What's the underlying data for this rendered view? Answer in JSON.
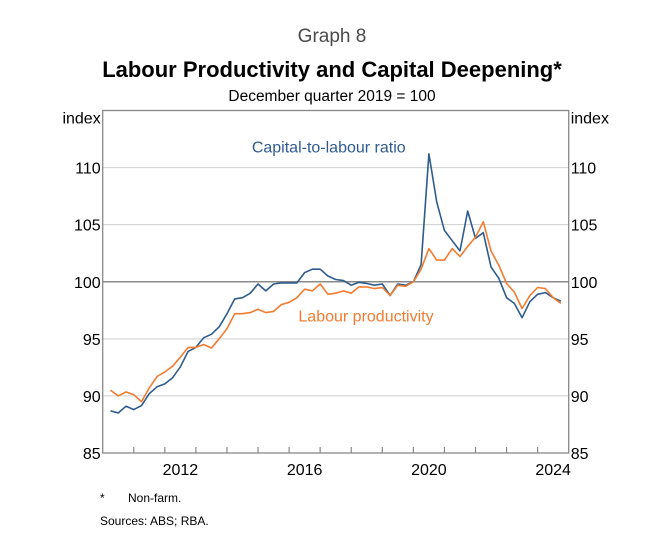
{
  "header": {
    "graph_number": "Graph 8",
    "title": "Labour Productivity and Capital Deepening*",
    "subtitle": "December quarter 2019 = 100"
  },
  "footnotes": {
    "star_symbol": "*",
    "note": "Non-farm.",
    "sources": "Sources: ABS; RBA."
  },
  "chart_data": {
    "type": "line",
    "title": "Labour Productivity and Capital Deepening*",
    "subtitle": "December quarter 2019 = 100",
    "xlabel": "",
    "ylabel_left": "index",
    "ylabel_right": "index",
    "xlim": [
      2010,
      2025
    ],
    "ylim": [
      85,
      115
    ],
    "x_start": 2010.25,
    "x_step": 0.25,
    "x_tick_labels": [
      {
        "label": "2012",
        "value": 2012.5
      },
      {
        "label": "2016",
        "value": 2016.5
      },
      {
        "label": "2020",
        "value": 2020.5
      },
      {
        "label": "2024",
        "value": 2024.5
      }
    ],
    "x_minor_ticks": [
      2011,
      2012,
      2013,
      2014,
      2015,
      2016,
      2017,
      2018,
      2019,
      2020,
      2021,
      2022,
      2023,
      2024
    ],
    "y_ticks": [
      85,
      90,
      95,
      100,
      105,
      110
    ],
    "reference_line": 100,
    "grid": true,
    "series": [
      {
        "name": "Capital-to-labour ratio",
        "color": "#2e5c8e",
        "values": [
          88.7,
          88.5,
          89.1,
          88.8,
          89.15,
          90.2,
          90.8,
          91.05,
          91.6,
          92.55,
          93.9,
          94.25,
          95.1,
          95.4,
          96.05,
          97.2,
          98.5,
          98.6,
          99.0,
          99.8,
          99.2,
          99.8,
          99.9,
          99.9,
          99.9,
          100.8,
          101.1,
          101.1,
          100.5,
          100.2,
          100.1,
          99.7,
          99.95,
          99.85,
          99.7,
          99.8,
          98.8,
          99.8,
          99.7,
          100.0,
          101.5,
          111.2,
          107.0,
          104.5,
          103.6,
          102.7,
          106.2,
          103.8,
          104.3,
          101.3,
          100.3,
          98.6,
          98.1,
          96.85,
          98.25,
          98.9,
          99.05,
          98.6,
          98.3
        ],
        "label_anchor": {
          "x": 2014.8,
          "y": 111.3
        }
      },
      {
        "name": "Labour productivity",
        "color": "#f47b30",
        "values": [
          90.5,
          90.0,
          90.35,
          90.1,
          89.5,
          90.7,
          91.7,
          92.1,
          92.6,
          93.4,
          94.25,
          94.25,
          94.5,
          94.2,
          95.0,
          95.9,
          97.2,
          97.2,
          97.3,
          97.6,
          97.3,
          97.4,
          98.0,
          98.2,
          98.6,
          99.35,
          99.2,
          99.8,
          98.9,
          99.0,
          99.2,
          99.0,
          99.55,
          99.55,
          99.4,
          99.5,
          98.8,
          99.7,
          99.6,
          100.0,
          101.1,
          102.9,
          101.9,
          101.9,
          102.9,
          102.2,
          103.1,
          103.9,
          105.25,
          102.7,
          101.45,
          99.85,
          99.1,
          97.65,
          98.8,
          99.5,
          99.4,
          98.6,
          98.1
        ],
        "label_anchor": {
          "x": 2016.3,
          "y": 96.5
        }
      }
    ]
  }
}
